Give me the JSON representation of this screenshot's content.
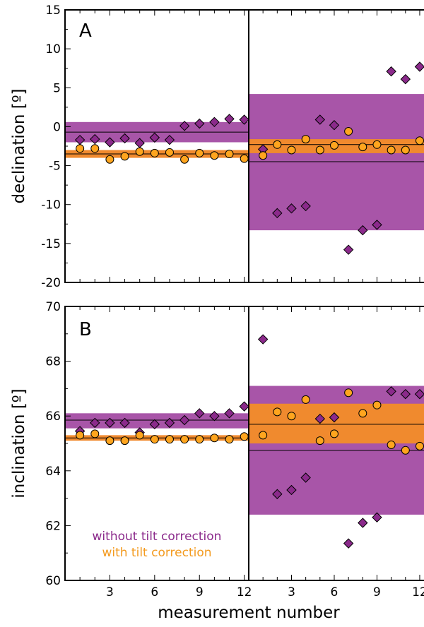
{
  "colors": {
    "without_tilt": "#a855a8",
    "without_tilt_marker": "#8b2a8b",
    "with_tilt": "#f08a2e",
    "with_tilt_marker": "#ffa51e",
    "with_tilt_legend": "#f39a1e"
  },
  "xlabel": "measurement number",
  "legend": {
    "without": "without tilt correction",
    "with": "with tilt correction"
  },
  "chart_data": [
    {
      "type": "scatter",
      "panel": "A",
      "ylabel": "declination [º]",
      "ylim": [
        -20,
        15
      ],
      "yticks": [
        -20,
        -15,
        -10,
        -5,
        0,
        5,
        10,
        15
      ],
      "xticks": [
        3,
        6,
        9,
        12
      ],
      "xlim": [
        0,
        12.3
      ],
      "legend_placement": "none",
      "sub_panels": [
        {
          "name": "left",
          "bands": {
            "without": {
              "low": -2.0,
              "high": 0.6,
              "line": -0.7
            },
            "with": {
              "low": -4.0,
              "high": -3.0,
              "line": -3.5
            }
          },
          "series": [
            {
              "group": "without",
              "marker": "diamond",
              "x": [
                1,
                2,
                3,
                4,
                5,
                6,
                7,
                8,
                9,
                10,
                11,
                12
              ],
              "y": [
                -1.7,
                -1.6,
                -2.0,
                -1.5,
                -2.1,
                -1.4,
                -1.7,
                0.1,
                0.4,
                0.6,
                1.0,
                0.9
              ]
            },
            {
              "group": "with",
              "marker": "circle",
              "x": [
                1,
                2,
                3,
                4,
                5,
                6,
                7,
                8,
                9,
                10,
                11,
                12
              ],
              "y": [
                -2.8,
                -2.8,
                -4.2,
                -3.8,
                -3.2,
                -3.4,
                -3.3,
                -4.2,
                -3.4,
                -3.7,
                -3.5,
                -4.1
              ]
            }
          ]
        },
        {
          "name": "right",
          "bands": {
            "without": {
              "low": -13.3,
              "high": 4.2,
              "line": -4.5
            },
            "with": {
              "low": -3.4,
              "high": -1.6,
              "line": -2.3
            }
          },
          "series": [
            {
              "group": "without",
              "marker": "diamond",
              "x": [
                1,
                2,
                3,
                4,
                5,
                6,
                7,
                8,
                9,
                10,
                11,
                12
              ],
              "y": [
                -2.9,
                -11.1,
                -10.5,
                -10.2,
                0.9,
                0.2,
                -15.8,
                -13.3,
                -12.6,
                7.1,
                6.1,
                7.7
              ]
            },
            {
              "group": "with",
              "marker": "circle",
              "x": [
                1,
                2,
                3,
                4,
                5,
                6,
                7,
                8,
                9,
                10,
                11,
                12
              ],
              "y": [
                -3.7,
                -2.3,
                -3.0,
                -1.6,
                -3.0,
                -2.4,
                -0.6,
                -2.6,
                -2.3,
                -3.0,
                -3.0,
                -1.8
              ]
            }
          ]
        }
      ]
    },
    {
      "type": "scatter",
      "panel": "B",
      "ylabel": "inclination [º]",
      "ylim": [
        60,
        70
      ],
      "yticks": [
        60,
        62,
        64,
        66,
        68,
        70
      ],
      "xticks": [
        3,
        6,
        9,
        12
      ],
      "xlim": [
        0,
        12.3
      ],
      "legend_placement": "bottom-left",
      "sub_panels": [
        {
          "name": "left",
          "bands": {
            "without": {
              "low": 65.55,
              "high": 66.1,
              "line": 65.85
            },
            "with": {
              "low": 65.1,
              "high": 65.3,
              "line": 65.2
            }
          },
          "series": [
            {
              "group": "without",
              "marker": "diamond",
              "x": [
                1,
                2,
                3,
                4,
                5,
                6,
                7,
                8,
                9,
                10,
                11,
                12
              ],
              "y": [
                65.45,
                65.75,
                65.75,
                65.75,
                65.4,
                65.7,
                65.75,
                65.85,
                66.1,
                66.0,
                66.1,
                66.35
              ]
            },
            {
              "group": "with",
              "marker": "circle",
              "x": [
                1,
                2,
                3,
                4,
                5,
                6,
                7,
                8,
                9,
                10,
                11,
                12
              ],
              "y": [
                65.3,
                65.35,
                65.1,
                65.1,
                65.3,
                65.15,
                65.15,
                65.15,
                65.15,
                65.2,
                65.15,
                65.25
              ]
            }
          ]
        },
        {
          "name": "right",
          "bands": {
            "without": {
              "low": 62.4,
              "high": 67.1,
              "line": 64.75
            },
            "with": {
              "low": 65.0,
              "high": 66.45,
              "line": 65.7
            }
          },
          "series": [
            {
              "group": "without",
              "marker": "diamond",
              "x": [
                1,
                2,
                3,
                4,
                5,
                6,
                7,
                8,
                9,
                10,
                11,
                12
              ],
              "y": [
                68.8,
                63.15,
                63.3,
                63.75,
                65.9,
                65.95,
                61.35,
                62.1,
                62.3,
                66.9,
                66.8,
                66.8
              ]
            },
            {
              "group": "with",
              "marker": "circle",
              "x": [
                1,
                2,
                3,
                4,
                5,
                6,
                7,
                8,
                9,
                10,
                11,
                12
              ],
              "y": [
                65.3,
                66.15,
                66.0,
                66.6,
                65.1,
                65.35,
                66.85,
                66.1,
                66.4,
                64.95,
                64.75,
                64.9
              ]
            }
          ]
        }
      ]
    }
  ]
}
